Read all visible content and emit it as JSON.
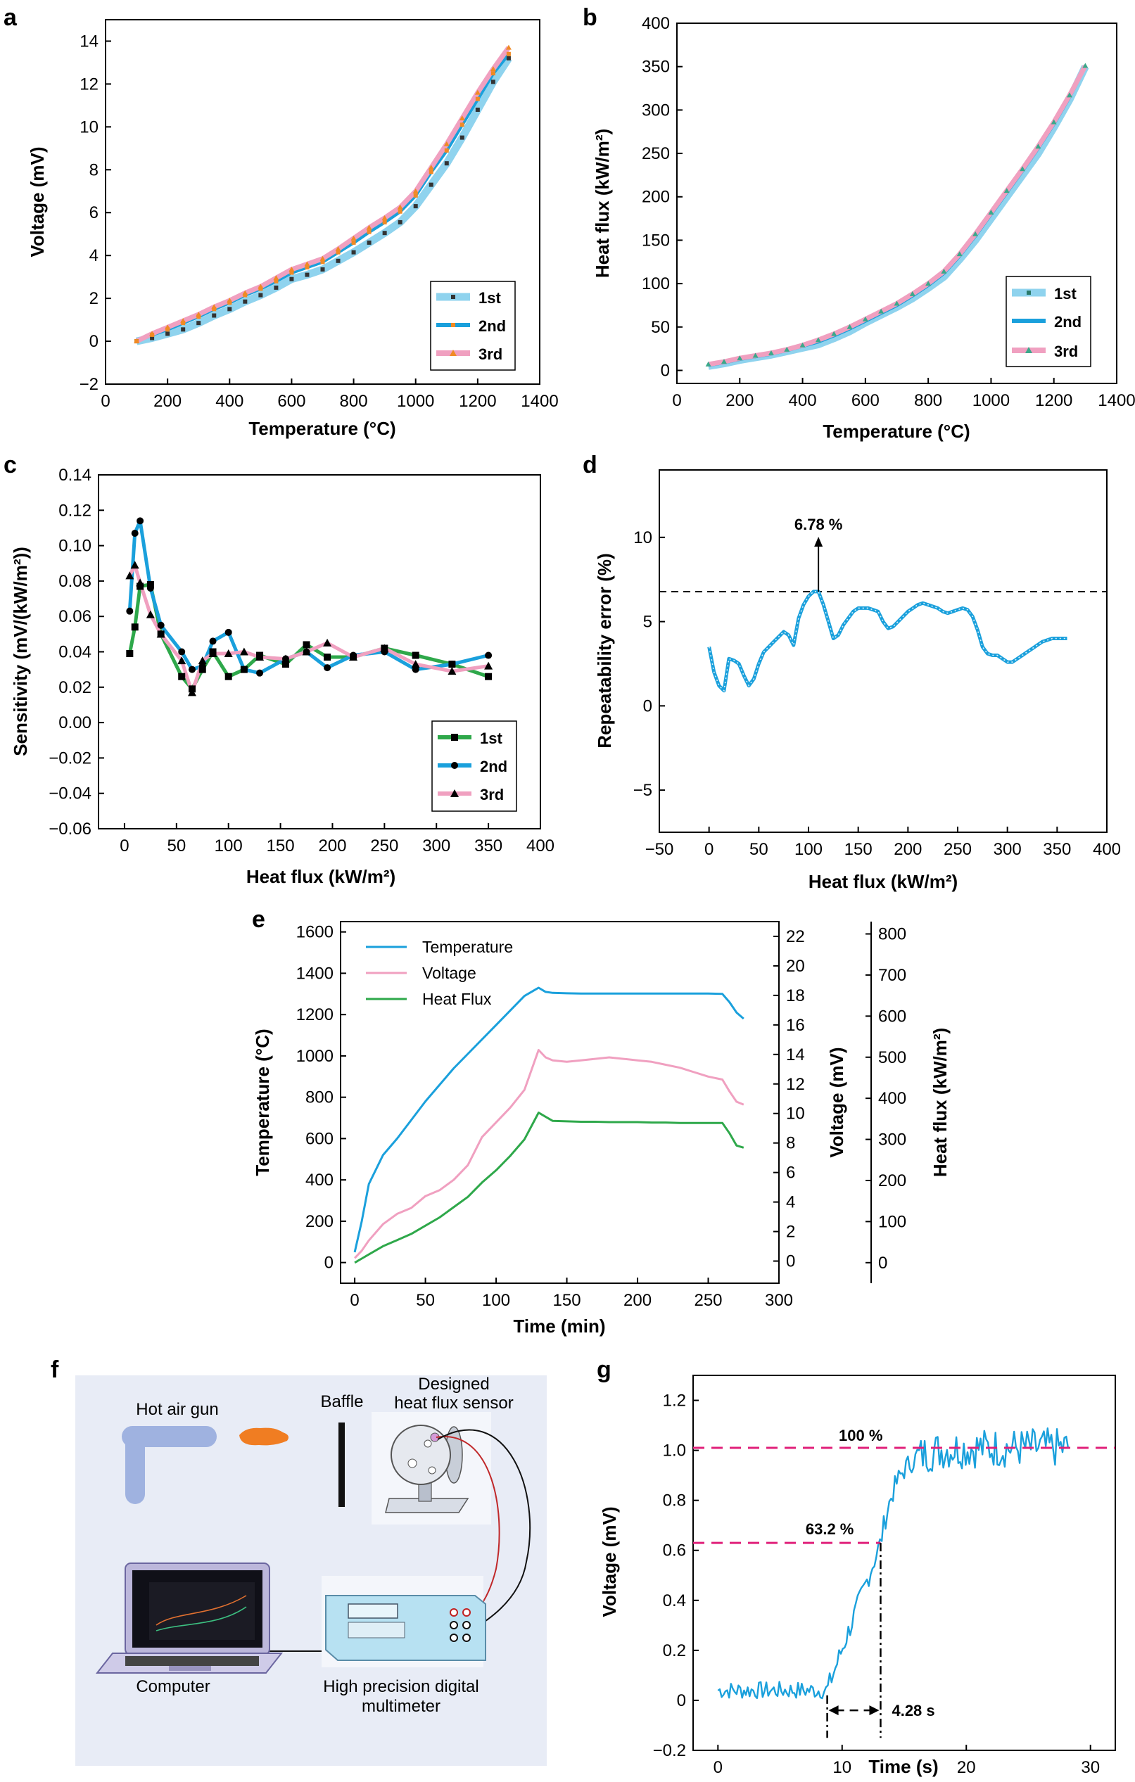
{
  "colors": {
    "axis": "#000000",
    "light_blue": "#8fd3ee",
    "blue": "#1aa0dc",
    "pink": "#f0a0c0",
    "green": "#2ea84a",
    "orange": "#f08a24",
    "magenta": "#e0207a",
    "panel_bg": "#e8ecf6"
  },
  "chart_data": [
    {
      "id": "a",
      "type": "line",
      "panel_label": "a",
      "xlabel": "Temperature (°C)",
      "ylabel": "Voltage (mV)",
      "xlim": [
        0,
        1400
      ],
      "ylim": [
        -2,
        15
      ],
      "xticks": [
        0,
        200,
        400,
        600,
        800,
        1000,
        1200,
        1400
      ],
      "yticks": [
        -2,
        0,
        2,
        4,
        6,
        8,
        10,
        12,
        14
      ],
      "x": [
        100,
        150,
        200,
        250,
        300,
        350,
        400,
        450,
        500,
        550,
        600,
        650,
        700,
        750,
        800,
        850,
        900,
        950,
        1000,
        1050,
        1100,
        1150,
        1200,
        1250,
        1300
      ],
      "series": [
        {
          "name": "1st",
          "values": [
            0.0,
            0.15,
            0.35,
            0.55,
            0.85,
            1.2,
            1.5,
            1.85,
            2.15,
            2.5,
            2.9,
            3.1,
            3.35,
            3.75,
            4.15,
            4.6,
            5.05,
            5.55,
            6.3,
            7.3,
            8.3,
            9.5,
            10.8,
            12.1,
            13.2
          ]
        },
        {
          "name": "2nd",
          "values": [
            0.0,
            0.3,
            0.55,
            0.85,
            1.15,
            1.5,
            1.8,
            2.15,
            2.45,
            2.8,
            3.2,
            3.45,
            3.7,
            4.15,
            4.6,
            5.1,
            5.55,
            6.05,
            6.8,
            7.9,
            8.9,
            10.1,
            11.3,
            12.5,
            13.4
          ]
        },
        {
          "name": "3rd",
          "values": [
            0.0,
            0.35,
            0.65,
            0.95,
            1.25,
            1.6,
            1.9,
            2.25,
            2.55,
            2.95,
            3.35,
            3.6,
            3.85,
            4.3,
            4.8,
            5.3,
            5.75,
            6.25,
            7.0,
            8.1,
            9.2,
            10.4,
            11.6,
            12.7,
            13.7
          ]
        }
      ],
      "legend": [
        "1st",
        "2nd",
        "3rd"
      ],
      "legend_loc": "bottom-right"
    },
    {
      "id": "b",
      "type": "line",
      "panel_label": "b",
      "xlabel": "Temperature (°C)",
      "ylabel": "Heat flux (kW/m²)",
      "xlim": [
        0,
        1400
      ],
      "ylim": [
        -15,
        400
      ],
      "xticks": [
        0,
        200,
        400,
        600,
        800,
        1000,
        1200,
        1400
      ],
      "yticks": [
        0,
        50,
        100,
        150,
        200,
        250,
        300,
        350,
        400
      ],
      "x": [
        100,
        150,
        200,
        250,
        300,
        350,
        400,
        450,
        500,
        550,
        600,
        650,
        700,
        750,
        800,
        850,
        900,
        950,
        1000,
        1050,
        1100,
        1150,
        1200,
        1250,
        1300
      ],
      "series": [
        {
          "name": "1st",
          "values": [
            5,
            8,
            12,
            15,
            18,
            22,
            26,
            30,
            37,
            45,
            55,
            64,
            73,
            83,
            95,
            108,
            128,
            150,
            175,
            200,
            225,
            250,
            280,
            312,
            350
          ]
        },
        {
          "name": "2nd",
          "values": [
            6,
            9,
            13,
            16,
            19,
            23,
            28,
            33,
            40,
            48,
            57,
            66,
            75,
            86,
            98,
            112,
            132,
            155,
            180,
            205,
            230,
            256,
            284,
            315,
            350
          ]
        },
        {
          "name": "3rd",
          "values": [
            7,
            10,
            14,
            17,
            20,
            24,
            29,
            35,
            42,
            50,
            59,
            68,
            77,
            88,
            100,
            114,
            134,
            157,
            182,
            207,
            232,
            258,
            286,
            317,
            351
          ]
        }
      ],
      "legend": [
        "1st",
        "2nd",
        "3rd"
      ],
      "legend_loc": "bottom-right"
    },
    {
      "id": "c",
      "type": "line",
      "panel_label": "c",
      "xlabel": "Heat flux (kW/m²)",
      "ylabel": "Sensitivity (mV/(kW/m²))",
      "xlim": [
        -25,
        400
      ],
      "ylim": [
        -0.06,
        0.14
      ],
      "xticks": [
        0,
        50,
        100,
        150,
        200,
        250,
        300,
        350,
        400
      ],
      "yticks": [
        -0.06,
        -0.04,
        -0.02,
        0.0,
        0.02,
        0.04,
        0.06,
        0.08,
        0.1,
        0.12,
        0.14
      ],
      "series": [
        {
          "name": "1st",
          "x": [
            5,
            10,
            15,
            25,
            35,
            55,
            65,
            75,
            85,
            100,
            115,
            130,
            155,
            175,
            195,
            220,
            250,
            280,
            315,
            350
          ],
          "values": [
            0.039,
            0.054,
            0.077,
            0.078,
            0.05,
            0.026,
            0.019,
            0.03,
            0.04,
            0.026,
            0.03,
            0.038,
            0.033,
            0.044,
            0.037,
            0.037,
            0.042,
            0.038,
            0.033,
            0.026
          ]
        },
        {
          "name": "2nd",
          "x": [
            5,
            10,
            15,
            25,
            35,
            55,
            65,
            75,
            85,
            100,
            115,
            130,
            155,
            175,
            195,
            220,
            250,
            280,
            315,
            350
          ],
          "values": [
            0.063,
            0.107,
            0.114,
            0.076,
            0.055,
            0.04,
            0.03,
            0.032,
            0.046,
            0.051,
            0.03,
            0.028,
            0.036,
            0.04,
            0.031,
            0.038,
            0.04,
            0.03,
            0.033,
            0.038
          ]
        },
        {
          "name": "3rd",
          "x": [
            5,
            10,
            15,
            25,
            35,
            55,
            65,
            75,
            85,
            100,
            115,
            130,
            155,
            175,
            195,
            220,
            250,
            280,
            315,
            350
          ],
          "values": [
            0.083,
            0.089,
            0.079,
            0.061,
            0.05,
            0.035,
            0.017,
            0.035,
            0.039,
            0.039,
            0.04,
            0.037,
            0.036,
            0.04,
            0.045,
            0.037,
            0.042,
            0.033,
            0.029,
            0.032
          ]
        }
      ],
      "legend": [
        "1st",
        "2nd",
        "3rd"
      ],
      "legend_loc": "bottom-right"
    },
    {
      "id": "d",
      "type": "line",
      "panel_label": "d",
      "xlabel": "Heat flux (kW/m²)",
      "ylabel": "Repeatability error (%)",
      "xlim": [
        -50,
        400
      ],
      "ylim": [
        -7.5,
        14
      ],
      "xticks": [
        -50,
        0,
        50,
        100,
        150,
        200,
        250,
        300,
        350,
        400
      ],
      "yticks": [
        -5,
        0,
        5,
        10
      ],
      "reference_line": 6.78,
      "annotation": "6.78 %",
      "series": [
        {
          "name": "Repeatability error",
          "x": [
            0,
            5,
            10,
            15,
            20,
            25,
            30,
            35,
            40,
            45,
            50,
            55,
            60,
            65,
            70,
            75,
            80,
            85,
            90,
            95,
            100,
            105,
            110,
            115,
            120,
            125,
            130,
            135,
            140,
            145,
            150,
            155,
            160,
            165,
            170,
            175,
            180,
            185,
            190,
            195,
            200,
            205,
            210,
            215,
            220,
            225,
            230,
            235,
            240,
            245,
            250,
            255,
            260,
            265,
            270,
            275,
            280,
            285,
            290,
            295,
            300,
            305,
            310,
            315,
            320,
            325,
            330,
            335,
            340,
            345,
            350,
            355,
            360
          ],
          "values": [
            3.5,
            2.0,
            1.2,
            0.9,
            2.8,
            2.7,
            2.5,
            1.8,
            1.2,
            1.6,
            2.5,
            3.2,
            3.5,
            3.8,
            4.1,
            4.4,
            4.2,
            3.6,
            5.2,
            6.0,
            6.5,
            6.78,
            6.78,
            6.0,
            5.0,
            4.0,
            4.2,
            4.8,
            5.2,
            5.6,
            5.8,
            5.8,
            5.8,
            5.7,
            5.6,
            5.0,
            4.6,
            4.7,
            5.0,
            5.3,
            5.6,
            5.8,
            6.0,
            6.1,
            6.0,
            5.9,
            5.8,
            5.6,
            5.5,
            5.6,
            5.7,
            5.8,
            5.7,
            5.3,
            4.5,
            3.5,
            3.1,
            3.0,
            3.0,
            2.8,
            2.6,
            2.6,
            2.8,
            3.0,
            3.2,
            3.4,
            3.6,
            3.8,
            3.9,
            4.0,
            4.0,
            4.0,
            4.0
          ]
        }
      ]
    },
    {
      "id": "e",
      "type": "line",
      "panel_label": "e",
      "xlabel": "Time (min)",
      "axes": [
        {
          "label": "Temperature (°C)",
          "lim": [
            -100,
            1650
          ],
          "ticks": [
            0,
            200,
            400,
            600,
            800,
            1000,
            1200,
            1400,
            1600
          ]
        },
        {
          "label": "Voltage (mV)",
          "lim": [
            -1.5,
            23
          ],
          "ticks": [
            0,
            2,
            4,
            6,
            8,
            10,
            12,
            14,
            16,
            18,
            20,
            22
          ]
        },
        {
          "label": "Heat flux (kW/m²)",
          "lim": [
            -50,
            830
          ],
          "ticks": [
            0,
            100,
            200,
            300,
            400,
            500,
            600,
            700,
            800
          ]
        }
      ],
      "xlim": [
        -10,
        300
      ],
      "xticks": [
        0,
        50,
        100,
        150,
        200,
        250,
        300
      ],
      "x": [
        0,
        5,
        10,
        20,
        30,
        40,
        50,
        60,
        70,
        80,
        90,
        100,
        110,
        120,
        130,
        135,
        140,
        150,
        160,
        170,
        180,
        190,
        200,
        210,
        220,
        230,
        240,
        250,
        260,
        265,
        270,
        275
      ],
      "series": [
        {
          "name": "Temperature",
          "axis": 0,
          "values": [
            50,
            200,
            380,
            520,
            600,
            690,
            780,
            860,
            940,
            1010,
            1080,
            1150,
            1220,
            1290,
            1330,
            1310,
            1305,
            1303,
            1302,
            1302,
            1302,
            1302,
            1302,
            1302,
            1302,
            1302,
            1302,
            1302,
            1300,
            1260,
            1210,
            1180
          ]
        },
        {
          "name": "Voltage",
          "axis": 1,
          "values": [
            0.2,
            0.7,
            1.4,
            2.5,
            3.2,
            3.6,
            4.4,
            4.8,
            5.5,
            6.5,
            8.4,
            9.4,
            10.4,
            11.6,
            14.3,
            13.8,
            13.6,
            13.5,
            13.6,
            13.7,
            13.8,
            13.7,
            13.6,
            13.5,
            13.3,
            13.1,
            12.8,
            12.5,
            12.3,
            11.5,
            10.8,
            10.6
          ]
        },
        {
          "name": "Heat Flux",
          "axis": 2,
          "values": [
            0,
            10,
            20,
            40,
            55,
            70,
            90,
            110,
            135,
            160,
            195,
            225,
            260,
            300,
            365,
            355,
            345,
            344,
            343,
            343,
            342,
            342,
            342,
            341,
            341,
            340,
            340,
            340,
            340,
            315,
            285,
            280
          ]
        }
      ],
      "legend": [
        "Temperature",
        "Voltage",
        "Heat Flux"
      ],
      "legend_loc": "top-left"
    },
    {
      "id": "g",
      "type": "line",
      "panel_label": "g",
      "xlabel": "Time (s)",
      "ylabel": "Voltage (mV)",
      "xlim": [
        -2,
        32
      ],
      "ylim": [
        -0.2,
        1.3
      ],
      "xticks": [
        0,
        10,
        20,
        30
      ],
      "yticks": [
        -0.2,
        0,
        0.2,
        0.4,
        0.6,
        0.8,
        1.0,
        1.2
      ],
      "level_100": 1.01,
      "label_100": "100 %",
      "level_632": 0.63,
      "label_632": "63.2 %",
      "t_start": 8.8,
      "t_632": 13.1,
      "response_time": "4.28 s",
      "noise_seed": 7
    }
  ],
  "panel_f": {
    "panel_label": "f",
    "labels": {
      "hot_air_gun": "Hot air gun",
      "baffle": "Baffle",
      "sensor_line1": "Designed",
      "sensor_line2": "heat flux sensor",
      "computer": "Computer",
      "multimeter_line1": "High precision digital",
      "multimeter_line2": "multimeter"
    }
  }
}
